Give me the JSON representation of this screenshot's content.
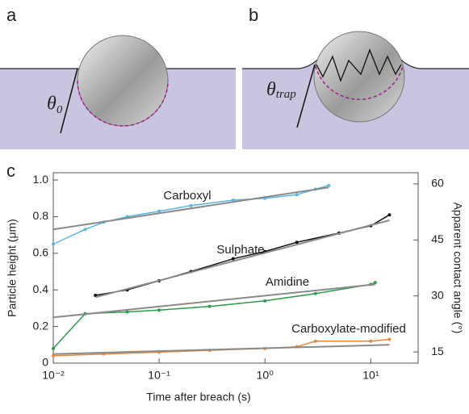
{
  "panels": {
    "a": {
      "label": "a",
      "angle": "θ₀"
    },
    "b": {
      "label": "b",
      "angle_symbol": "θ",
      "angle_subscript": "trap"
    },
    "c": {
      "label": "c"
    }
  },
  "chart_data": {
    "type": "line",
    "x_label": "Time after breach (s)",
    "y_label": "Particle height (μm)",
    "y2_label": "Apparent contact angle (°)",
    "log_x": true,
    "xlim": [
      0.01,
      28
    ],
    "xticks": [
      {
        "value": 0.01,
        "label": "10⁻²"
      },
      {
        "value": 0.1,
        "label": "10⁻¹"
      },
      {
        "value": 1,
        "label": "10⁰"
      },
      {
        "value": 10,
        "label": "10¹"
      }
    ],
    "ylim": [
      0,
      1.04
    ],
    "yticks": [
      0,
      {
        "value": 0.2,
        "label": "0.2"
      },
      {
        "value": 0.4,
        "label": "0.4"
      },
      {
        "value": 0.6,
        "label": "0.6"
      },
      {
        "value": 0.8,
        "label": "0.8"
      },
      {
        "value": 1.0,
        "label": "1.0"
      }
    ],
    "y2lim": [
      12,
      63
    ],
    "y2ticks": [
      15,
      30,
      45,
      60
    ],
    "fit_color": "#8a8a8a",
    "series": [
      {
        "name": "Carboxyl",
        "color": "#5ab6e0",
        "x": [
          0.01,
          0.02,
          0.03,
          0.05,
          0.1,
          0.2,
          0.5,
          1,
          2,
          3,
          4
        ],
        "values": [
          0.65,
          0.73,
          0.77,
          0.8,
          0.83,
          0.86,
          0.89,
          0.9,
          0.92,
          0.95,
          0.97
        ],
        "fit": {
          "x": [
            0.01,
            4
          ],
          "values": [
            0.73,
            0.96
          ]
        }
      },
      {
        "name": "Sulphate",
        "color": "#111111",
        "x": [
          0.025,
          0.05,
          0.1,
          0.2,
          0.5,
          1,
          2,
          5,
          10,
          15
        ],
        "values": [
          0.37,
          0.4,
          0.45,
          0.5,
          0.57,
          0.61,
          0.66,
          0.71,
          0.75,
          0.81
        ],
        "fit": {
          "x": [
            0.025,
            15
          ],
          "values": [
            0.36,
            0.78
          ]
        }
      },
      {
        "name": "Amidine",
        "color": "#2e9a4e",
        "x": [
          0.01,
          0.02,
          0.05,
          0.1,
          0.3,
          1,
          3,
          10,
          11
        ],
        "values": [
          0.08,
          0.27,
          0.28,
          0.29,
          0.31,
          0.34,
          0.38,
          0.43,
          0.44
        ],
        "fit": {
          "x": [
            0.01,
            11
          ],
          "values": [
            0.25,
            0.43
          ]
        }
      },
      {
        "name": "Carboxylate-modified",
        "color": "#e8893a",
        "x": [
          0.01,
          0.03,
          0.1,
          0.3,
          1,
          2,
          3,
          10,
          15
        ],
        "values": [
          0.04,
          0.05,
          0.06,
          0.07,
          0.08,
          0.09,
          0.12,
          0.12,
          0.13
        ],
        "fit": {
          "x": [
            0.01,
            15
          ],
          "values": [
            0.05,
            0.1
          ]
        }
      }
    ]
  }
}
